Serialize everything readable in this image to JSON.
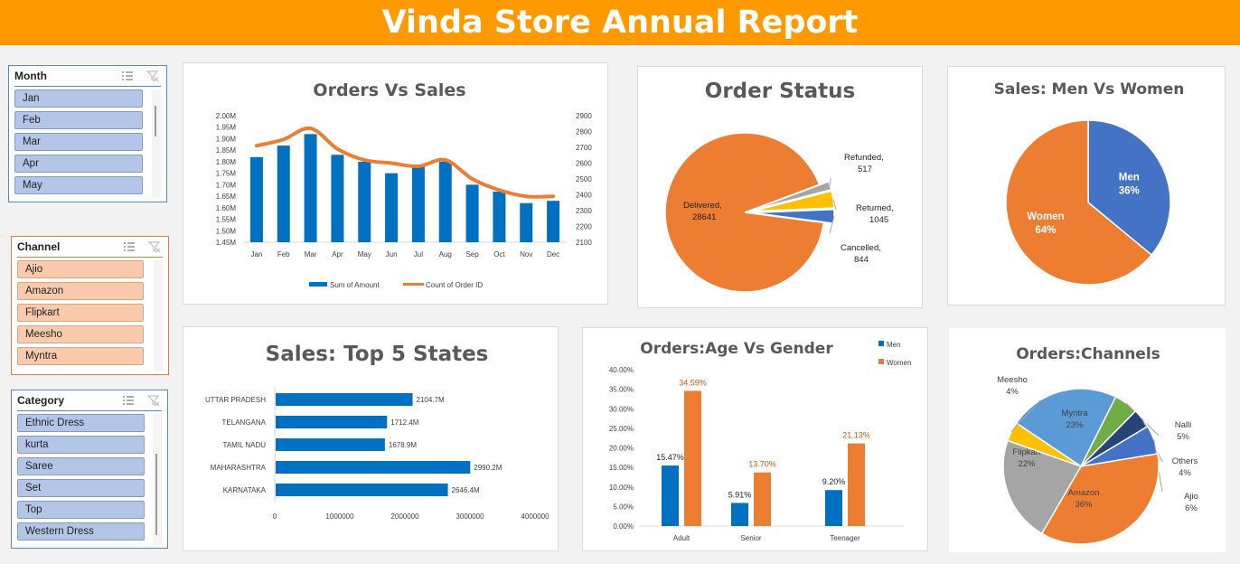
{
  "title": "Vinda Store Annual Report",
  "colors": {
    "header": "#ff9900",
    "blue": "#0070c0",
    "orange": "#ed7d31",
    "yellow": "#ffc000",
    "gray": "#a5a5a5",
    "green": "#70ad47",
    "darkblue": "#264478",
    "mid": "#4472c4"
  },
  "slicers": {
    "month": {
      "title": "Month",
      "items": [
        "Jan",
        "Feb",
        "Mar",
        "Apr",
        "May"
      ]
    },
    "channel": {
      "title": "Channel",
      "items": [
        "Ajio",
        "Amazon",
        "Flipkart",
        "Meesho",
        "Myntra"
      ]
    },
    "category": {
      "title": "Category",
      "items": [
        "Ethnic Dress",
        "kurta",
        "Saree",
        "Set",
        "Top",
        "Western Dress"
      ]
    }
  },
  "chart_data": [
    {
      "type": "bar",
      "title": "Orders Vs Sales",
      "categories": [
        "Jan",
        "Feb",
        "Mar",
        "Apr",
        "May",
        "Jun",
        "Jul",
        "Aug",
        "Sep",
        "Oct",
        "Nov",
        "Dec"
      ],
      "series": [
        {
          "name": "Sum of Amount",
          "type": "bar",
          "axis": "left",
          "values": [
            1.82,
            1.87,
            1.92,
            1.83,
            1.8,
            1.75,
            1.78,
            1.8,
            1.7,
            1.67,
            1.62,
            1.63
          ]
        },
        {
          "name": "Count of Order ID",
          "type": "line",
          "axis": "right",
          "values": [
            2710,
            2750,
            2820,
            2690,
            2620,
            2600,
            2580,
            2620,
            2500,
            2430,
            2390,
            2390
          ]
        }
      ],
      "ylim": [
        1.45,
        2.0
      ],
      "yticks": [
        "1.45M",
        "1.50M",
        "1.55M",
        "1.60M",
        "1.65M",
        "1.70M",
        "1.75M",
        "1.80M",
        "1.85M",
        "1.90M",
        "1.95M",
        "2.00M"
      ],
      "y2lim": [
        2100,
        2900
      ],
      "y2ticks": [
        "2100",
        "2200",
        "2300",
        "2400",
        "2500",
        "2600",
        "2700",
        "2800",
        "2900"
      ],
      "legend": "bottom"
    },
    {
      "type": "pie",
      "title": "Order Status",
      "slices": [
        {
          "name": "Delivered",
          "value": 28641
        },
        {
          "name": "Refunded",
          "value": 517
        },
        {
          "name": "Returned",
          "value": 1045
        },
        {
          "name": "Cancelled",
          "value": 844
        }
      ]
    },
    {
      "type": "pie",
      "title": "Sales: Men Vs Women",
      "slices": [
        {
          "name": "Men",
          "value": 36,
          "label": "36%"
        },
        {
          "name": "Women",
          "value": 64,
          "label": "64%"
        }
      ]
    },
    {
      "type": "bar",
      "orientation": "horizontal",
      "title": "Sales: Top 5 States",
      "categories": [
        "UTTAR PRADESH",
        "TELANGANA",
        "TAMIL NADU",
        "MAHARASHTRA",
        "KARNATAKA"
      ],
      "values": [
        2104.7,
        1712.4,
        1678.9,
        2990.2,
        2646.4
      ],
      "labels": [
        "2104.7M",
        "1712.4M",
        "1678.9M",
        "2990.2M",
        "2646.4M"
      ],
      "xlim": [
        0,
        4000000
      ],
      "xticks": [
        "0",
        "1000000",
        "2000000",
        "3000000",
        "4000000"
      ]
    },
    {
      "type": "bar",
      "title": "Orders:Age Vs Gender",
      "categories": [
        "Adult",
        "Senior",
        "Teenager"
      ],
      "series": [
        {
          "name": "Men",
          "values": [
            15.47,
            5.91,
            9.2
          ],
          "labels": [
            "15.47%",
            "5.91%",
            "9.20%"
          ]
        },
        {
          "name": "Women",
          "values": [
            34.59,
            13.7,
            21.13
          ],
          "labels": [
            "34.59%",
            "13.70%",
            "21.13%"
          ]
        }
      ],
      "ylim": [
        0,
        40
      ],
      "yticks": [
        "0.00%",
        "5.00%",
        "10.00%",
        "15.00%",
        "20.00%",
        "25.00%",
        "30.00%",
        "35.00%",
        "40.00%"
      ],
      "legend": "top-right"
    },
    {
      "type": "pie",
      "title": "Orders:Channels",
      "slices": [
        {
          "name": "Myntra",
          "value": 23,
          "label": "23%"
        },
        {
          "name": "Nalli",
          "value": 5,
          "label": "5%"
        },
        {
          "name": "Others",
          "value": 4,
          "label": "4%"
        },
        {
          "name": "Ajio",
          "value": 6,
          "label": "6%"
        },
        {
          "name": "Amazon",
          "value": 36,
          "label": "36%"
        },
        {
          "name": "Flipkart",
          "value": 22,
          "label": "22%"
        },
        {
          "name": "Meesho",
          "value": 4,
          "label": "4%"
        }
      ]
    }
  ]
}
